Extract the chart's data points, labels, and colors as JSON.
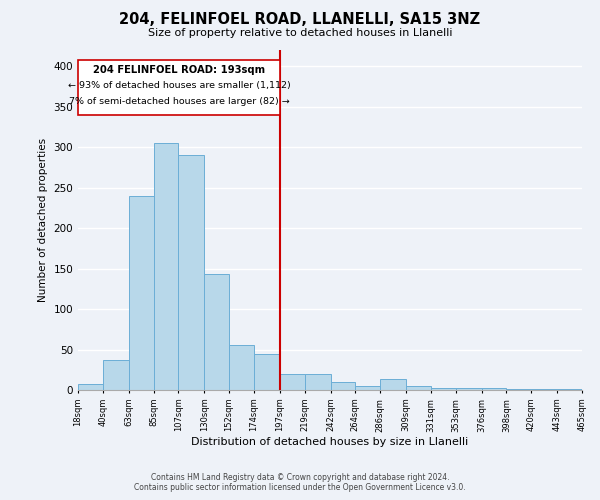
{
  "title": "204, FELINFOEL ROAD, LLANELLI, SA15 3NZ",
  "subtitle": "Size of property relative to detached houses in Llanelli",
  "xlabel": "Distribution of detached houses by size in Llanelli",
  "ylabel": "Number of detached properties",
  "bar_color": "#b8d8ea",
  "bar_edge_color": "#6baed6",
  "background_color": "#eef2f8",
  "annotation_box_color": "#ffffff",
  "annotation_box_edge": "#cc0000",
  "vline_color": "#cc0000",
  "vline_x_index": 8,
  "annotation_line1": "204 FELINFOEL ROAD: 193sqm",
  "annotation_line2": "← 93% of detached houses are smaller (1,112)",
  "annotation_line3": "7% of semi-detached houses are larger (82) →",
  "tick_labels": [
    "18sqm",
    "40sqm",
    "63sqm",
    "85sqm",
    "107sqm",
    "130sqm",
    "152sqm",
    "174sqm",
    "197sqm",
    "219sqm",
    "242sqm",
    "264sqm",
    "286sqm",
    "309sqm",
    "331sqm",
    "353sqm",
    "376sqm",
    "398sqm",
    "420sqm",
    "443sqm",
    "465sqm"
  ],
  "bin_edges": [
    18,
    40,
    63,
    85,
    107,
    130,
    152,
    174,
    197,
    219,
    242,
    264,
    286,
    309,
    331,
    353,
    376,
    398,
    420,
    443,
    465
  ],
  "bar_heights": [
    8,
    37,
    240,
    305,
    290,
    143,
    55,
    45,
    20,
    20,
    10,
    5,
    13,
    5,
    3,
    2,
    2,
    1,
    1,
    1
  ],
  "ylim": [
    0,
    420
  ],
  "yticks": [
    0,
    50,
    100,
    150,
    200,
    250,
    300,
    350,
    400
  ],
  "footer_line1": "Contains HM Land Registry data © Crown copyright and database right 2024.",
  "footer_line2": "Contains public sector information licensed under the Open Government Licence v3.0."
}
